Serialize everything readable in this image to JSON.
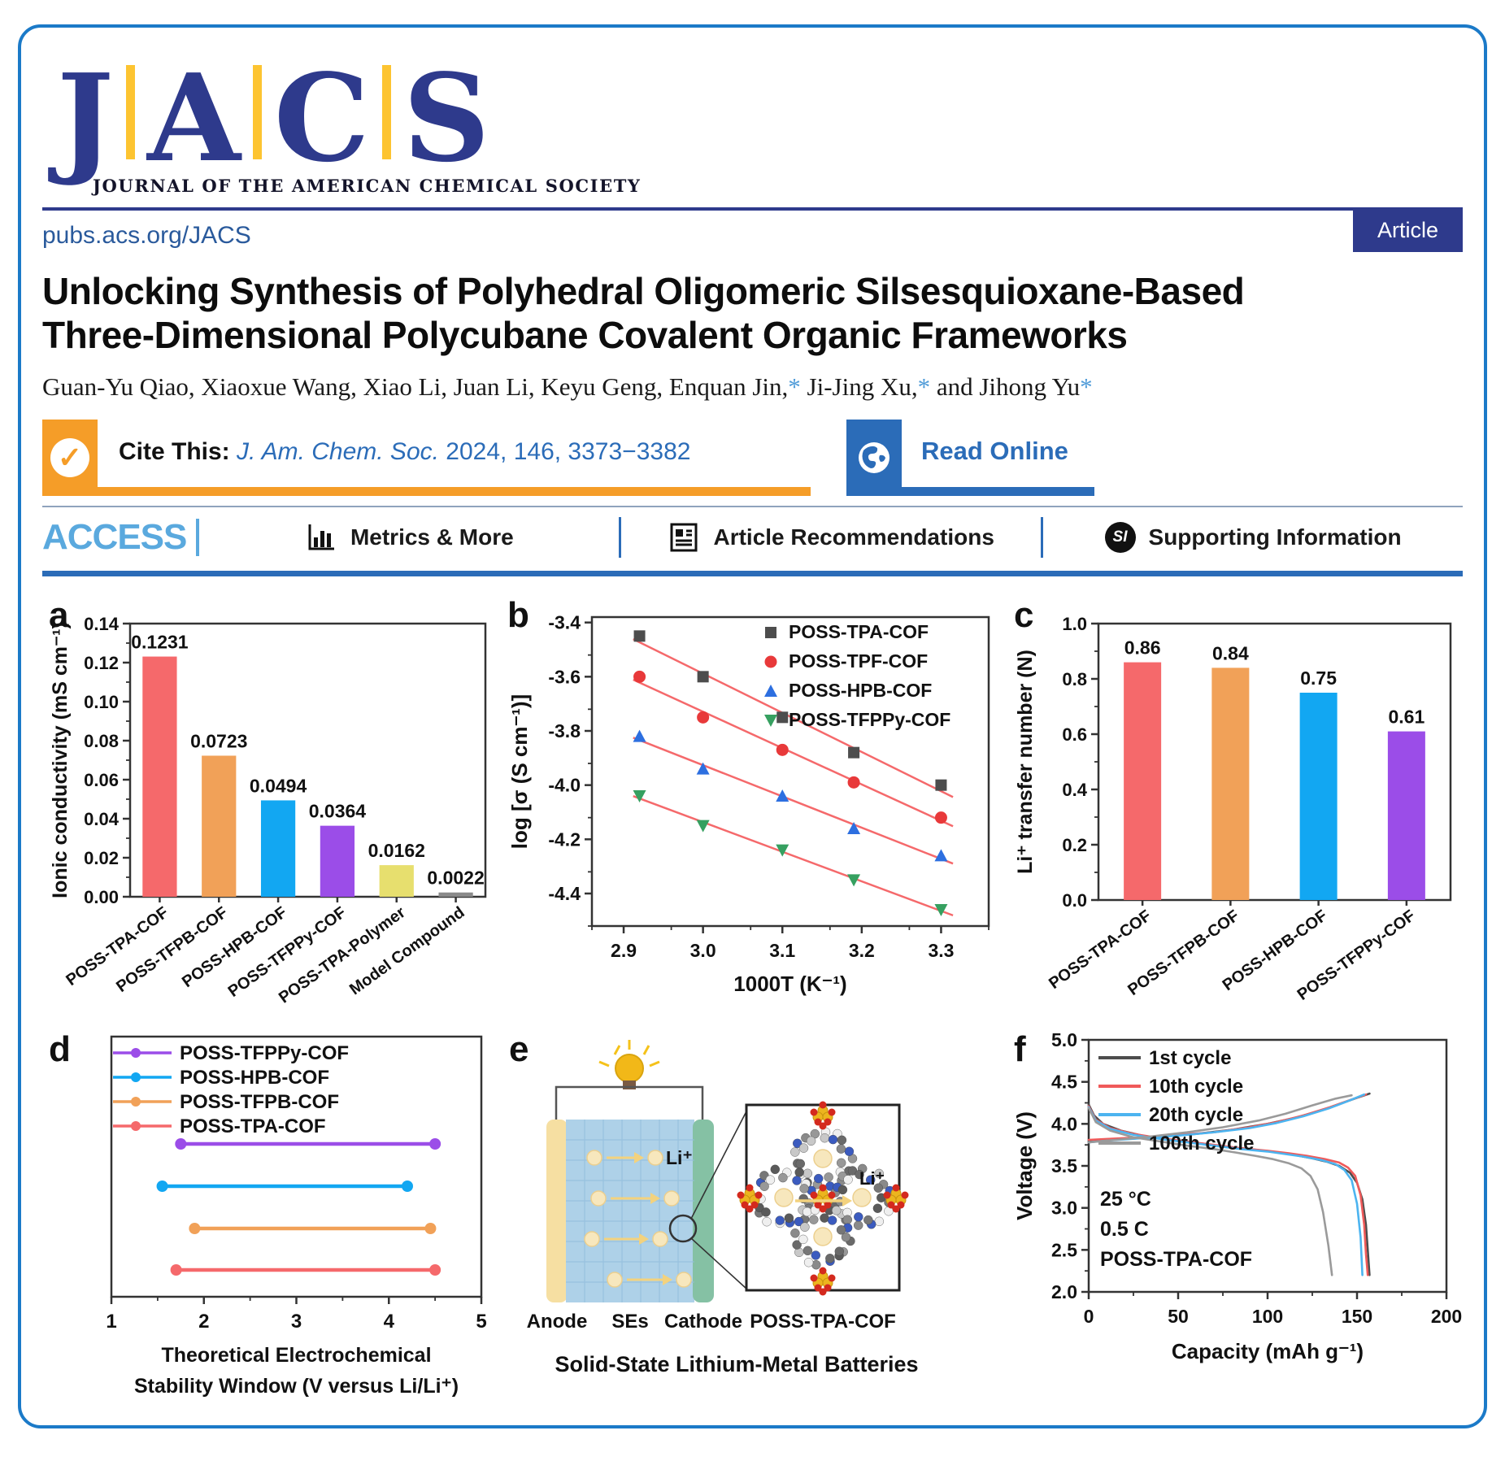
{
  "brand": {
    "letters": [
      "J",
      "A",
      "C",
      "S"
    ],
    "subtitle": "JOURNAL OF THE AMERICAN CHEMICAL SOCIETY",
    "site_url": "pubs.acs.org/JACS",
    "article_badge": "Article",
    "navy": "#2e3a8c",
    "gold": "#fdc431"
  },
  "article": {
    "title": "Unlocking Synthesis of Polyhedral Oligomeric Silsesquioxane-Based Three-Dimensional Polycubane Covalent Organic Frameworks",
    "authors_segments": [
      {
        "text": "Guan-Yu Qiao, Xiaoxue Wang, Xiao Li, Juan Li, Keyu Geng, Enquan Jin,"
      },
      {
        "star": "*"
      },
      {
        "text": " Ji-Jing Xu,"
      },
      {
        "star": "*"
      },
      {
        "text": " and Jihong Yu"
      },
      {
        "star": "*"
      }
    ]
  },
  "cite": {
    "label": "Cite This:",
    "journal": "J. Am. Chem. Soc.",
    "rest": " 2024, 146, 3373−3382",
    "check_glyph": "✓",
    "read_online": "Read Online"
  },
  "access": {
    "title": "ACCESS",
    "items": [
      {
        "label": "Metrics & More",
        "icon": "bar-chart-icon"
      },
      {
        "label": "Article Recommendations",
        "icon": "article-icon"
      },
      {
        "label": "Supporting Information",
        "icon": "si-icon",
        "icon_text": "SI"
      }
    ]
  },
  "chart_data": [
    {
      "type": "bar",
      "panel_letter": "a",
      "categories": [
        "POSS-TPA-COF",
        "POSS-TFPB-COF",
        "POSS-HPB-COF",
        "POSS-TFPPy-COF",
        "POSS-TPA-Polymer",
        "Model Compound"
      ],
      "values": [
        0.1231,
        0.0723,
        0.0494,
        0.0364,
        0.0162,
        0.0022
      ],
      "value_labels": [
        "0.1231",
        "0.0723",
        "0.0494",
        "0.0364",
        "0.0162",
        "0.0022"
      ],
      "bar_colors": [
        "#f5696b",
        "#f1a158",
        "#12a7f2",
        "#9b4de8",
        "#e7df6e",
        "#8a8a8a"
      ],
      "ylabel": "Ionic conductivity (mS cm⁻¹)",
      "ylim": [
        0,
        0.14
      ],
      "yticks": [
        0,
        0.02,
        0.04,
        0.06,
        0.08,
        0.1,
        0.12,
        0.14
      ],
      "ytick_labels": [
        "0.00",
        "0.02",
        "0.04",
        "0.06",
        "0.08",
        "0.10",
        "0.12",
        "0.14"
      ],
      "yminor": 0.01
    },
    {
      "type": "scatter",
      "panel_letter": "b",
      "x": [
        2.92,
        3.0,
        3.1,
        3.19,
        3.3
      ],
      "series": [
        {
          "name": "POSS-TPA-COF",
          "marker": "square",
          "color": "#4d4d4d",
          "y": [
            -3.45,
            -3.6,
            -3.75,
            -3.88,
            -4.0
          ]
        },
        {
          "name": "POSS-TPF-COF",
          "marker": "circle",
          "color": "#e8393a",
          "y": [
            -3.6,
            -3.75,
            -3.87,
            -3.99,
            -4.12
          ]
        },
        {
          "name": "POSS-HPB-COF",
          "marker": "triangle-up",
          "color": "#2d6fe0",
          "y": [
            -3.82,
            -3.94,
            -4.04,
            -4.16,
            -4.26
          ]
        },
        {
          "name": "POSS-TFPPy-COF",
          "marker": "triangle-down",
          "color": "#36a060",
          "y": [
            -4.04,
            -4.15,
            -4.24,
            -4.35,
            -4.46
          ]
        }
      ],
      "fit_color": "#f5696b",
      "xlabel": "1000T (K⁻¹)",
      "ylabel": "log [σ (S cm⁻¹)]",
      "xlim": [
        2.86,
        3.36
      ],
      "ylim": [
        -4.52,
        -3.38
      ],
      "xticks": [
        2.9,
        3.0,
        3.1,
        3.2,
        3.3
      ],
      "xtick_labels": [
        "2.9",
        "3.0",
        "3.1",
        "3.2",
        "3.3"
      ],
      "yticks": [
        -3.4,
        -3.6,
        -3.8,
        -4.0,
        -4.2,
        -4.4
      ],
      "ytick_labels": [
        "-3.4",
        "-3.6",
        "-3.8",
        "-4.0",
        "-4.2",
        "-4.4"
      ],
      "xminor": 0.05,
      "yminor": 0.1
    },
    {
      "type": "bar",
      "panel_letter": "c",
      "categories": [
        "POSS-TPA-COF",
        "POSS-TFPB-COF",
        "POSS-HPB-COF",
        "POSS-TFPPy-COF"
      ],
      "values": [
        0.86,
        0.84,
        0.75,
        0.61
      ],
      "value_labels": [
        "0.86",
        "0.84",
        "0.75",
        "0.61"
      ],
      "bar_colors": [
        "#f5696b",
        "#f1a158",
        "#12a7f2",
        "#9b4de8"
      ],
      "ylabel": "Li⁺ transfer number (N)",
      "ylim": [
        0,
        1.0
      ],
      "yticks": [
        0,
        0.2,
        0.4,
        0.6,
        0.8,
        1.0
      ],
      "ytick_labels": [
        "0.0",
        "0.2",
        "0.4",
        "0.6",
        "0.8",
        "1.0"
      ],
      "yminor": 0.1
    },
    {
      "type": "segments",
      "panel_letter": "d",
      "series": [
        {
          "name": "POSS-TPA-COF",
          "color": "#f5696b",
          "x1": 1.7,
          "x2": 4.5,
          "row": 4
        },
        {
          "name": "POSS-TFPB-COF",
          "color": "#f1a158",
          "x1": 1.9,
          "x2": 4.45,
          "row": 3
        },
        {
          "name": "POSS-HPB-COF",
          "color": "#12a7f2",
          "x1": 1.55,
          "x2": 4.2,
          "row": 2
        },
        {
          "name": "POSS-TFPPy-COF",
          "color": "#9b4de8",
          "x1": 1.75,
          "x2": 4.5,
          "row": 1
        }
      ],
      "xlim": [
        1,
        5
      ],
      "xticks": [
        1,
        2,
        3,
        4,
        5
      ],
      "xtick_labels": [
        "1",
        "2",
        "3",
        "4",
        "5"
      ],
      "xminor": 0.5,
      "xlabel_line1": "Theoretical Electrochemical",
      "xlabel_line2": "Stability Window (V versus Li/Li⁺)"
    },
    {
      "type": "diagram",
      "panel_letter": "e",
      "labels": {
        "anode": "Anode",
        "ses": "SEs",
        "cathode": "Cathode",
        "li": "Li⁺",
        "inset_li": "Li⁺",
        "inset_caption": "POSS-TPA-COF",
        "caption": "Solid-State Lithium-Metal Batteries"
      }
    },
    {
      "type": "cycles",
      "panel_letter": "f",
      "series": [
        {
          "name": "1st cycle",
          "color": "#4d4d4d",
          "charge": [
            [
              0,
              3.79
            ],
            [
              5,
              3.8
            ],
            [
              20,
              3.82
            ],
            [
              40,
              3.85
            ],
            [
              60,
              3.88
            ],
            [
              80,
              3.93
            ],
            [
              100,
              4.0
            ],
            [
              115,
              4.07
            ],
            [
              130,
              4.16
            ],
            [
              142,
              4.25
            ],
            [
              150,
              4.31
            ],
            [
              157,
              4.36
            ]
          ],
          "discharge": [
            [
              0,
              4.23
            ],
            [
              3,
              4.1
            ],
            [
              8,
              4.0
            ],
            [
              18,
              3.92
            ],
            [
              30,
              3.86
            ],
            [
              45,
              3.81
            ],
            [
              60,
              3.77
            ],
            [
              75,
              3.73
            ],
            [
              90,
              3.7
            ],
            [
              105,
              3.66
            ],
            [
              115,
              3.63
            ],
            [
              125,
              3.59
            ],
            [
              133,
              3.55
            ],
            [
              140,
              3.5
            ],
            [
              146,
              3.42
            ],
            [
              150,
              3.3
            ],
            [
              153,
              3.1
            ],
            [
              155,
              2.8
            ],
            [
              156,
              2.5
            ],
            [
              157,
              2.2
            ]
          ]
        },
        {
          "name": "10th cycle",
          "color": "#f05a5a",
          "charge": [
            [
              0,
              3.81
            ],
            [
              10,
              3.82
            ],
            [
              30,
              3.84
            ],
            [
              50,
              3.87
            ],
            [
              70,
              3.9
            ],
            [
              90,
              3.96
            ],
            [
              105,
              4.02
            ],
            [
              120,
              4.1
            ],
            [
              135,
              4.2
            ],
            [
              147,
              4.29
            ],
            [
              155,
              4.35
            ]
          ],
          "discharge": [
            [
              0,
              4.21
            ],
            [
              4,
              4.05
            ],
            [
              12,
              3.95
            ],
            [
              25,
              3.88
            ],
            [
              40,
              3.83
            ],
            [
              55,
              3.79
            ],
            [
              70,
              3.75
            ],
            [
              85,
              3.71
            ],
            [
              100,
              3.68
            ],
            [
              112,
              3.65
            ],
            [
              122,
              3.62
            ],
            [
              132,
              3.58
            ],
            [
              140,
              3.54
            ],
            [
              145,
              3.48
            ],
            [
              149,
              3.38
            ],
            [
              152,
              3.15
            ],
            [
              154,
              2.8
            ],
            [
              155,
              2.45
            ],
            [
              156,
              2.2
            ]
          ]
        },
        {
          "name": "20th cycle",
          "color": "#4cb4f0",
          "charge": [
            [
              0,
              3.78
            ],
            [
              10,
              3.8
            ],
            [
              30,
              3.83
            ],
            [
              50,
              3.86
            ],
            [
              70,
              3.9
            ],
            [
              90,
              3.95
            ],
            [
              105,
              4.01
            ],
            [
              120,
              4.09
            ],
            [
              135,
              4.19
            ],
            [
              146,
              4.28
            ],
            [
              154,
              4.35
            ]
          ],
          "discharge": [
            [
              0,
              4.2
            ],
            [
              4,
              4.04
            ],
            [
              12,
              3.94
            ],
            [
              25,
              3.87
            ],
            [
              40,
              3.82
            ],
            [
              55,
              3.78
            ],
            [
              70,
              3.74
            ],
            [
              85,
              3.7
            ],
            [
              100,
              3.67
            ],
            [
              110,
              3.64
            ],
            [
              120,
              3.61
            ],
            [
              130,
              3.57
            ],
            [
              138,
              3.52
            ],
            [
              143,
              3.45
            ],
            [
              147,
              3.33
            ],
            [
              150,
              3.05
            ],
            [
              152,
              2.65
            ],
            [
              153,
              2.2
            ]
          ]
        },
        {
          "name": "100th cycle",
          "color": "#9a9a9a",
          "charge": [
            [
              0,
              3.78
            ],
            [
              15,
              3.81
            ],
            [
              35,
              3.85
            ],
            [
              55,
              3.9
            ],
            [
              75,
              3.96
            ],
            [
              95,
              4.04
            ],
            [
              110,
              4.12
            ],
            [
              125,
              4.22
            ],
            [
              138,
              4.3
            ],
            [
              147,
              4.34
            ]
          ],
          "discharge": [
            [
              0,
              4.19
            ],
            [
              4,
              4.02
            ],
            [
              12,
              3.92
            ],
            [
              25,
              3.84
            ],
            [
              40,
              3.79
            ],
            [
              55,
              3.74
            ],
            [
              70,
              3.7
            ],
            [
              82,
              3.66
            ],
            [
              93,
              3.62
            ],
            [
              103,
              3.58
            ],
            [
              112,
              3.53
            ],
            [
              119,
              3.47
            ],
            [
              124,
              3.38
            ],
            [
              128,
              3.22
            ],
            [
              131,
              2.95
            ],
            [
              134,
              2.55
            ],
            [
              136,
              2.2
            ]
          ]
        }
      ],
      "annotations": [
        {
          "text": "25 °C",
          "color": "#111111"
        },
        {
          "text": "0.5 C",
          "color": "#111111"
        },
        {
          "text": "POSS-TPA-COF",
          "color": "#e01b1b"
        }
      ],
      "xlabel": "Capacity (mAh g⁻¹)",
      "ylabel": "Voltage (V)",
      "xlim": [
        0,
        200
      ],
      "ylim": [
        2.0,
        5.0
      ],
      "xticks": [
        0,
        50,
        100,
        150,
        200
      ],
      "xtick_labels": [
        "0",
        "50",
        "100",
        "150",
        "200"
      ],
      "yticks": [
        2.0,
        2.5,
        3.0,
        3.5,
        4.0,
        4.5,
        5.0
      ],
      "ytick_labels": [
        "2.0",
        "2.5",
        "3.0",
        "3.5",
        "4.0",
        "4.5",
        "5.0"
      ],
      "xminor": 25,
      "yminor": 0.25
    }
  ]
}
